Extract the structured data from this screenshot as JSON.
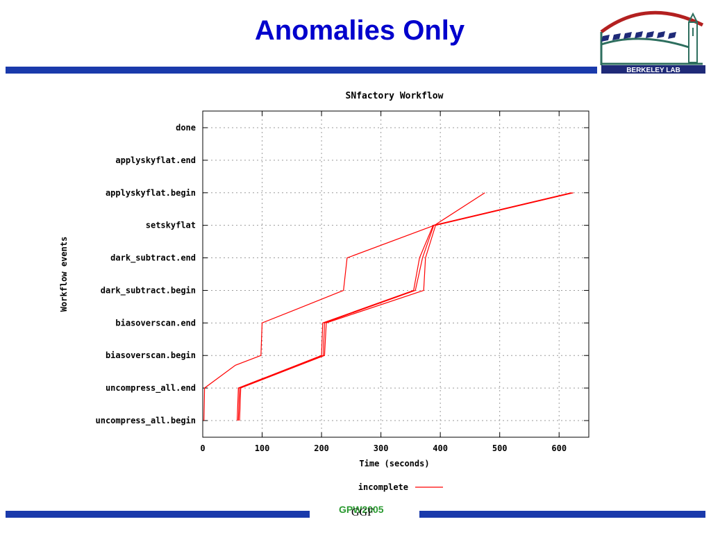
{
  "slide": {
    "title": "Anomalies Only",
    "footer_label": "GPW2005",
    "footer_overlay": "GGF",
    "logo_text": "BERKELEY LAB",
    "colors": {
      "title": "#0000cc",
      "bar": "#1a3aab",
      "footer_label": "#2a9a30",
      "series": "#ff0000"
    }
  },
  "chart_data": {
    "type": "line",
    "title": "SNfactory Workflow",
    "xlabel": "Time (seconds)",
    "ylabel": "Workflow events",
    "xlim": [
      0,
      650
    ],
    "x_ticks": [
      "0",
      "100",
      "200",
      "300",
      "400",
      "500",
      "600"
    ],
    "categories": [
      "uncompress_all.begin",
      "uncompress_all.end",
      "biasoverscan.begin",
      "biasoverscan.end",
      "dark_subtract.begin",
      "dark_subtract.end",
      "setskyflat",
      "applyskyflat.begin",
      "applyskyflat.end",
      "done"
    ],
    "grid": true,
    "legend": "bottom",
    "legend_label": "incomplete",
    "series": [
      {
        "x": [
          2,
          3,
          55,
          98,
          100,
          155,
          237,
          243,
          390,
          475
        ],
        "y": [
          0,
          1,
          1.7,
          2,
          3,
          3.4,
          4,
          5,
          6,
          7
        ]
      },
      {
        "x": [
          58,
          60,
          200,
          202,
          355,
          365,
          388,
          620
        ],
        "y": [
          0,
          1,
          2,
          3,
          4,
          5,
          6,
          7
        ]
      },
      {
        "x": [
          60,
          62,
          203,
          205,
          358,
          370,
          389,
          622
        ],
        "y": [
          0,
          1,
          2,
          3,
          4,
          5,
          6,
          7
        ]
      },
      {
        "x": [
          62,
          64,
          205,
          208,
          372,
          375,
          392,
          624
        ],
        "y": [
          0,
          1,
          2,
          3,
          4,
          5,
          6,
          7
        ]
      }
    ]
  }
}
